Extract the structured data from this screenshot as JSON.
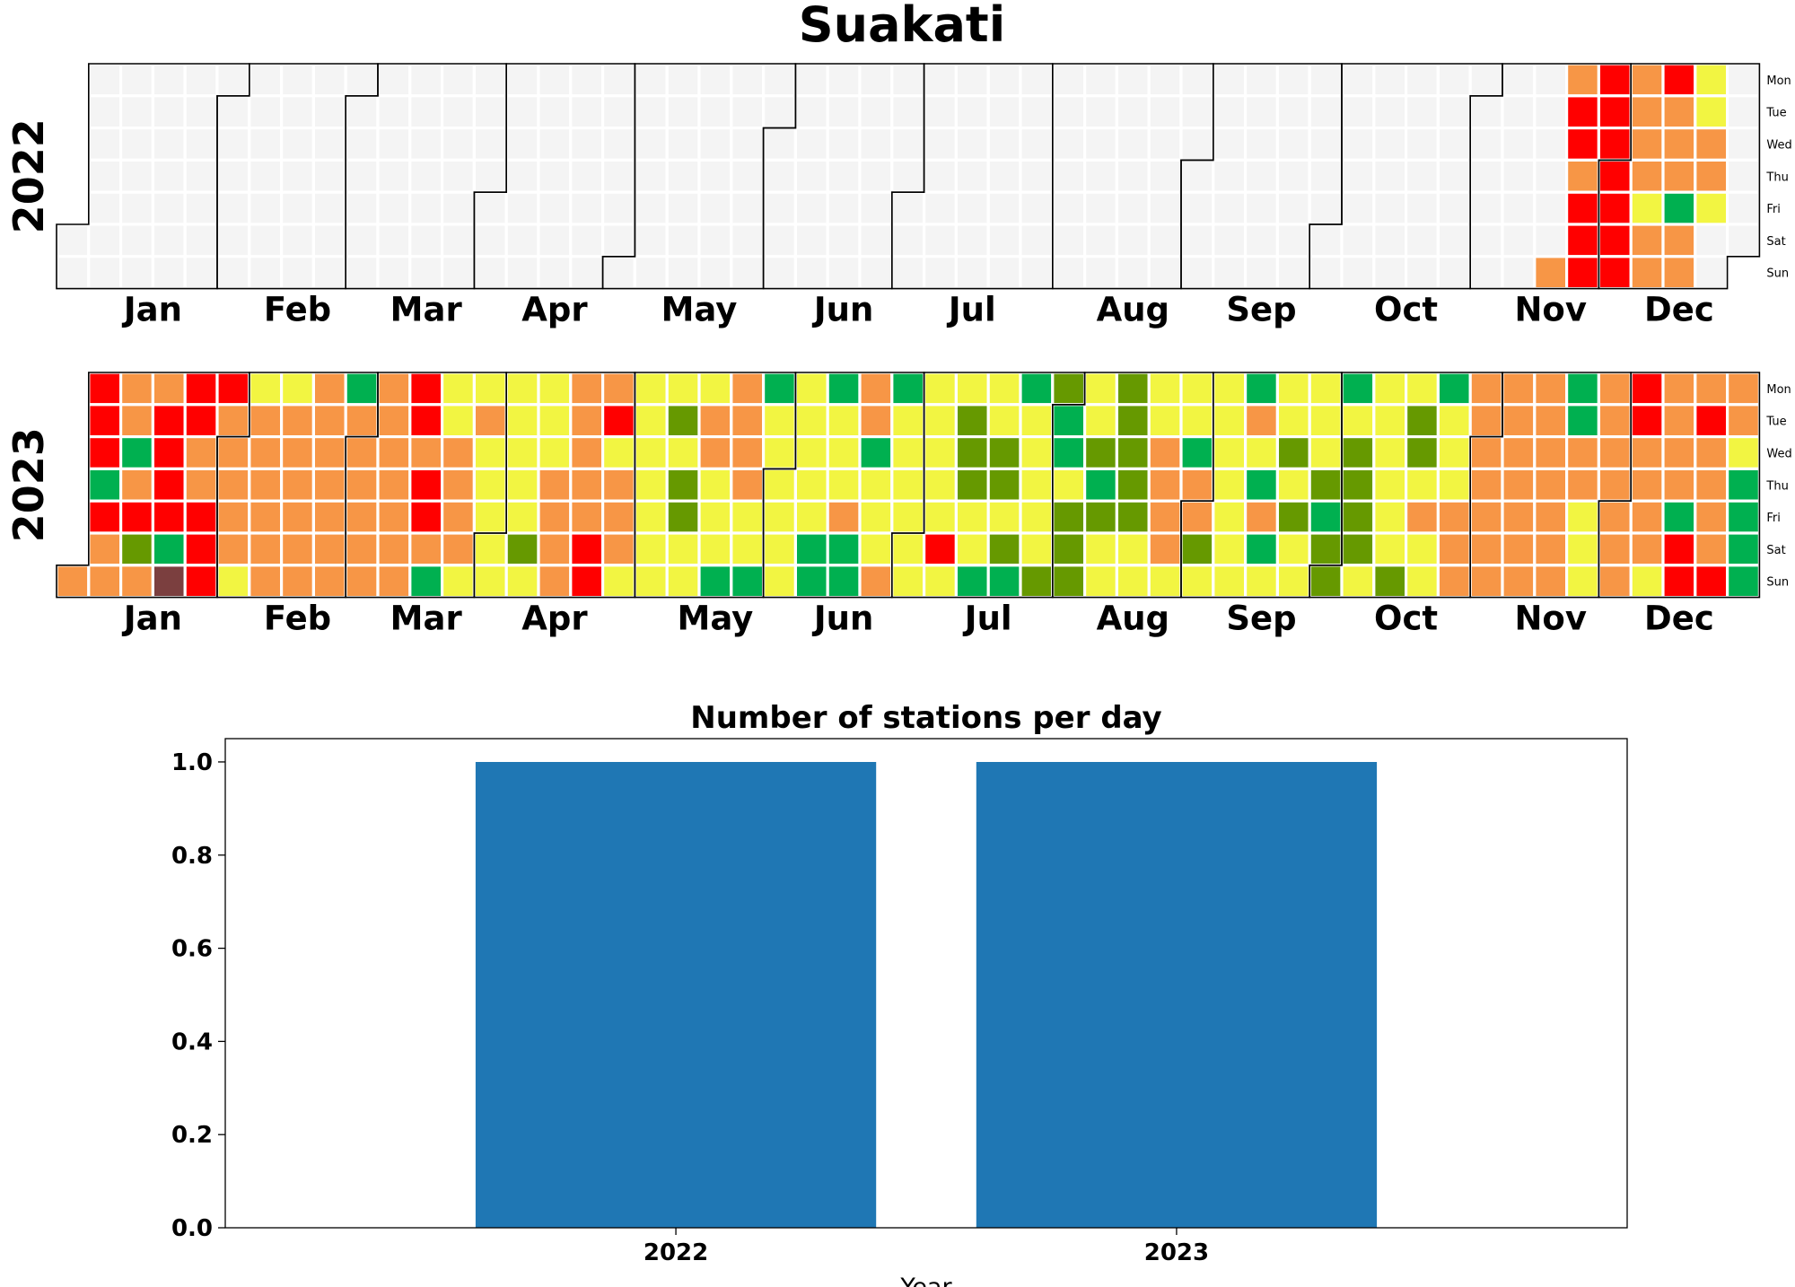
{
  "title": "Suakati",
  "category_colors": {
    "none": "#f4f4f4",
    "G": "#00b050",
    "O": "#669900",
    "Y": "#f2f542",
    "A": "#f79646",
    "R": "#ff0000",
    "M": "#7b3f3f"
  },
  "weekday_labels": [
    "Mon",
    "Tue",
    "Wed",
    "Thu",
    "Fri",
    "Sat",
    "Sun"
  ],
  "month_labels": [
    "Jan",
    "Feb",
    "Mar",
    "Apr",
    "May",
    "Jun",
    "Jul",
    "Aug",
    "Sep",
    "Oct",
    "Nov",
    "Dec"
  ],
  "chart_data": [
    {
      "type": "heatmap",
      "year": "2022",
      "week_rows_mon_to_sun": [
        "",
        "",
        "",
        "",
        "",
        "",
        "",
        "",
        "",
        "",
        "",
        "",
        "",
        "",
        "",
        "",
        "",
        "",
        "",
        "",
        "",
        "",
        "",
        "",
        "",
        "",
        "",
        "",
        "",
        "",
        "",
        "",
        "",
        "",
        "",
        "",
        "",
        "",
        "",
        "",
        "",
        "",
        "",
        "",
        "",
        "",
        "......A",
        "ARRARRR",
        "RRRRRRR",
        "AAAAYAA",
        "RAAAGAA",
        "YYAAY"
      ]
    },
    {
      "type": "heatmap",
      "year": "2023",
      "week_rows_mon_to_sun": [
        "......A",
        "RRRGRAA",
        "AAGAROA",
        "ARRRRGM",
        "RRAARRR",
        "RAAAAAY",
        "YAAAAAA",
        "YAAAAAA",
        "AAAAAAA",
        "GAAAAAA",
        "AAAAAAA",
        "RRARRAG",
        "YYAAAAY",
        "YAYYYYY",
        "YYYYYOY",
        "YYYAAAA",
        "AAAAARR",
        "ARYAAAY",
        "YYYYYYY",
        "YOYOOYY",
        "YAAYYYG",
        "AAAAYYG",
        "GYYYYYY",
        "YYYYYGG",
        "GYYYAGG",
        "AAGYYYA",
        "GYYYYYY",
        "YYYYYRY",
        "YOOOYYG",
        "YYOOYOG",
        "GYYYYYO",
        "OGGYOOO",
        "YYOGOYY",
        "OOOOOYY",
        "YYAAAAY",
        "YYGAAOY",
        "YYYYYYY",
        "GAYGAGY",
        "YYOYOYY",
        "YYYOGOO",
        "GYOOOOY",
        "YYYYYYO",
        "YOOYAYY",
        "GYYYAAA",
        "AAAAAAA",
        "AAAAAAA",
        "AAAAAAA",
        "GGAAYYY",
        "AAAAAAA",
        "RRAAAAY",
        "AAAAGRR",
        "ARAAAAR",
        "AAYGGGG",
        "GAAAAAA",
        "RRRAAAA",
        "AAAR"
      ]
    },
    {
      "type": "bar",
      "title": "Number of stations per day",
      "categories": [
        "2022",
        "2023"
      ],
      "values": [
        1,
        1
      ],
      "xlabel": "Year",
      "ylabel": "",
      "ylim": [
        0,
        1.05
      ],
      "yticks": [
        "0.0",
        "0.2",
        "0.4",
        "0.6",
        "0.8",
        "1.0"
      ],
      "color": "#1f77b4"
    }
  ]
}
